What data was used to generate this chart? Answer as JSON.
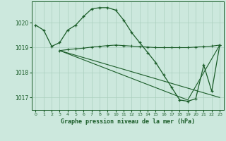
{
  "title": "Graphe pression niveau de la mer (hPa)",
  "background_color": "#cce8dd",
  "grid_color": "#aacfbe",
  "line_color": "#1a5c28",
  "xlim": [
    -0.5,
    23.5
  ],
  "ylim": [
    1016.5,
    1020.85
  ],
  "yticks": [
    1017,
    1018,
    1019,
    1020
  ],
  "xticks": [
    0,
    1,
    2,
    3,
    4,
    5,
    6,
    7,
    8,
    9,
    10,
    11,
    12,
    13,
    14,
    15,
    16,
    17,
    18,
    19,
    20,
    21,
    22,
    23
  ],
  "series1_x": [
    0,
    1,
    2,
    3,
    4,
    5,
    6,
    7,
    8,
    9,
    10,
    11,
    12,
    13,
    14,
    15,
    16,
    17,
    18,
    19,
    20,
    21,
    22,
    23
  ],
  "series1_y": [
    1019.9,
    1019.7,
    1019.05,
    1019.2,
    1019.7,
    1019.9,
    1020.25,
    1020.55,
    1020.6,
    1020.6,
    1020.5,
    1020.1,
    1019.6,
    1019.2,
    1018.8,
    1018.4,
    1017.9,
    1017.4,
    1016.9,
    1016.85,
    1016.95,
    1018.3,
    1017.25,
    1019.1
  ],
  "series2_x": [
    3,
    4,
    5,
    6,
    7,
    8,
    9,
    10,
    11,
    12,
    13,
    14,
    15,
    16,
    17,
    18,
    19,
    20,
    21,
    22,
    23
  ],
  "series2_y": [
    1018.88,
    1018.92,
    1018.95,
    1018.98,
    1019.02,
    1019.05,
    1019.08,
    1019.1,
    1019.08,
    1019.06,
    1019.04,
    1019.02,
    1019.0,
    1019.0,
    1019.0,
    1019.0,
    1019.0,
    1019.02,
    1019.04,
    1019.06,
    1019.1
  ],
  "series3_x": [
    3,
    19,
    23
  ],
  "series3_y": [
    1018.88,
    1016.9,
    1019.1
  ],
  "series4_x": [
    3,
    23
  ],
  "series4_y": [
    1018.88,
    1017.0
  ]
}
